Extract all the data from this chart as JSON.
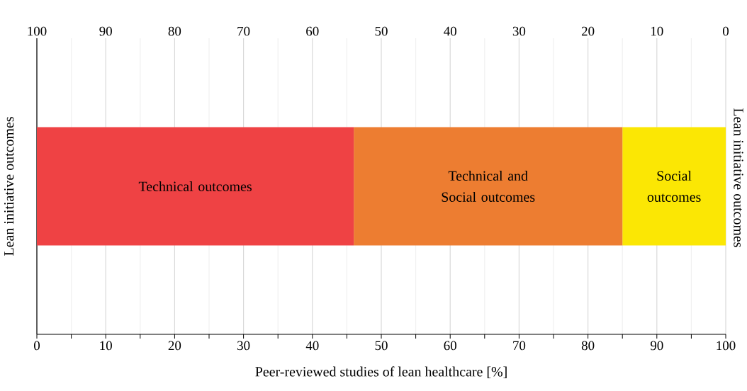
{
  "chart_data": {
    "type": "bar",
    "orientation": "horizontal",
    "stacked": true,
    "categories": [
      null
    ],
    "series": [
      {
        "name": "Technical outcomes",
        "color": "#ef4244",
        "values": [
          46
        ]
      },
      {
        "name": "Technical and Social outcomes",
        "color": "#ed7d31",
        "values": [
          39
        ]
      },
      {
        "name": "Social outcomes",
        "color": "#fbe704",
        "values": [
          15
        ]
      }
    ],
    "xlabel": "Peer-reviewed studies of lean healthcare [%]",
    "ylabel": "Lean initiative outcomes",
    "y2label": "Lean initiative outcomes",
    "xlim": [
      0,
      100
    ],
    "xticks": [
      0,
      {
        "value": 5,
        "label": null
      },
      10,
      {
        "value": 15,
        "label": null
      },
      20,
      {
        "value": 25,
        "label": null
      },
      30,
      {
        "value": 35,
        "label": null
      },
      40,
      {
        "value": 45,
        "label": null
      },
      50,
      {
        "value": 55,
        "label": null
      },
      60,
      {
        "value": 65,
        "label": null
      },
      70,
      {
        "value": 75,
        "label": null
      },
      80,
      {
        "value": 85,
        "label": null
      },
      90,
      {
        "value": 95,
        "label": null
      },
      100
    ],
    "x2lim": [
      100,
      0
    ],
    "x2ticks": [
      100,
      90,
      80,
      70,
      60,
      50,
      40,
      30,
      20,
      10,
      0
    ],
    "grid": "x"
  }
}
